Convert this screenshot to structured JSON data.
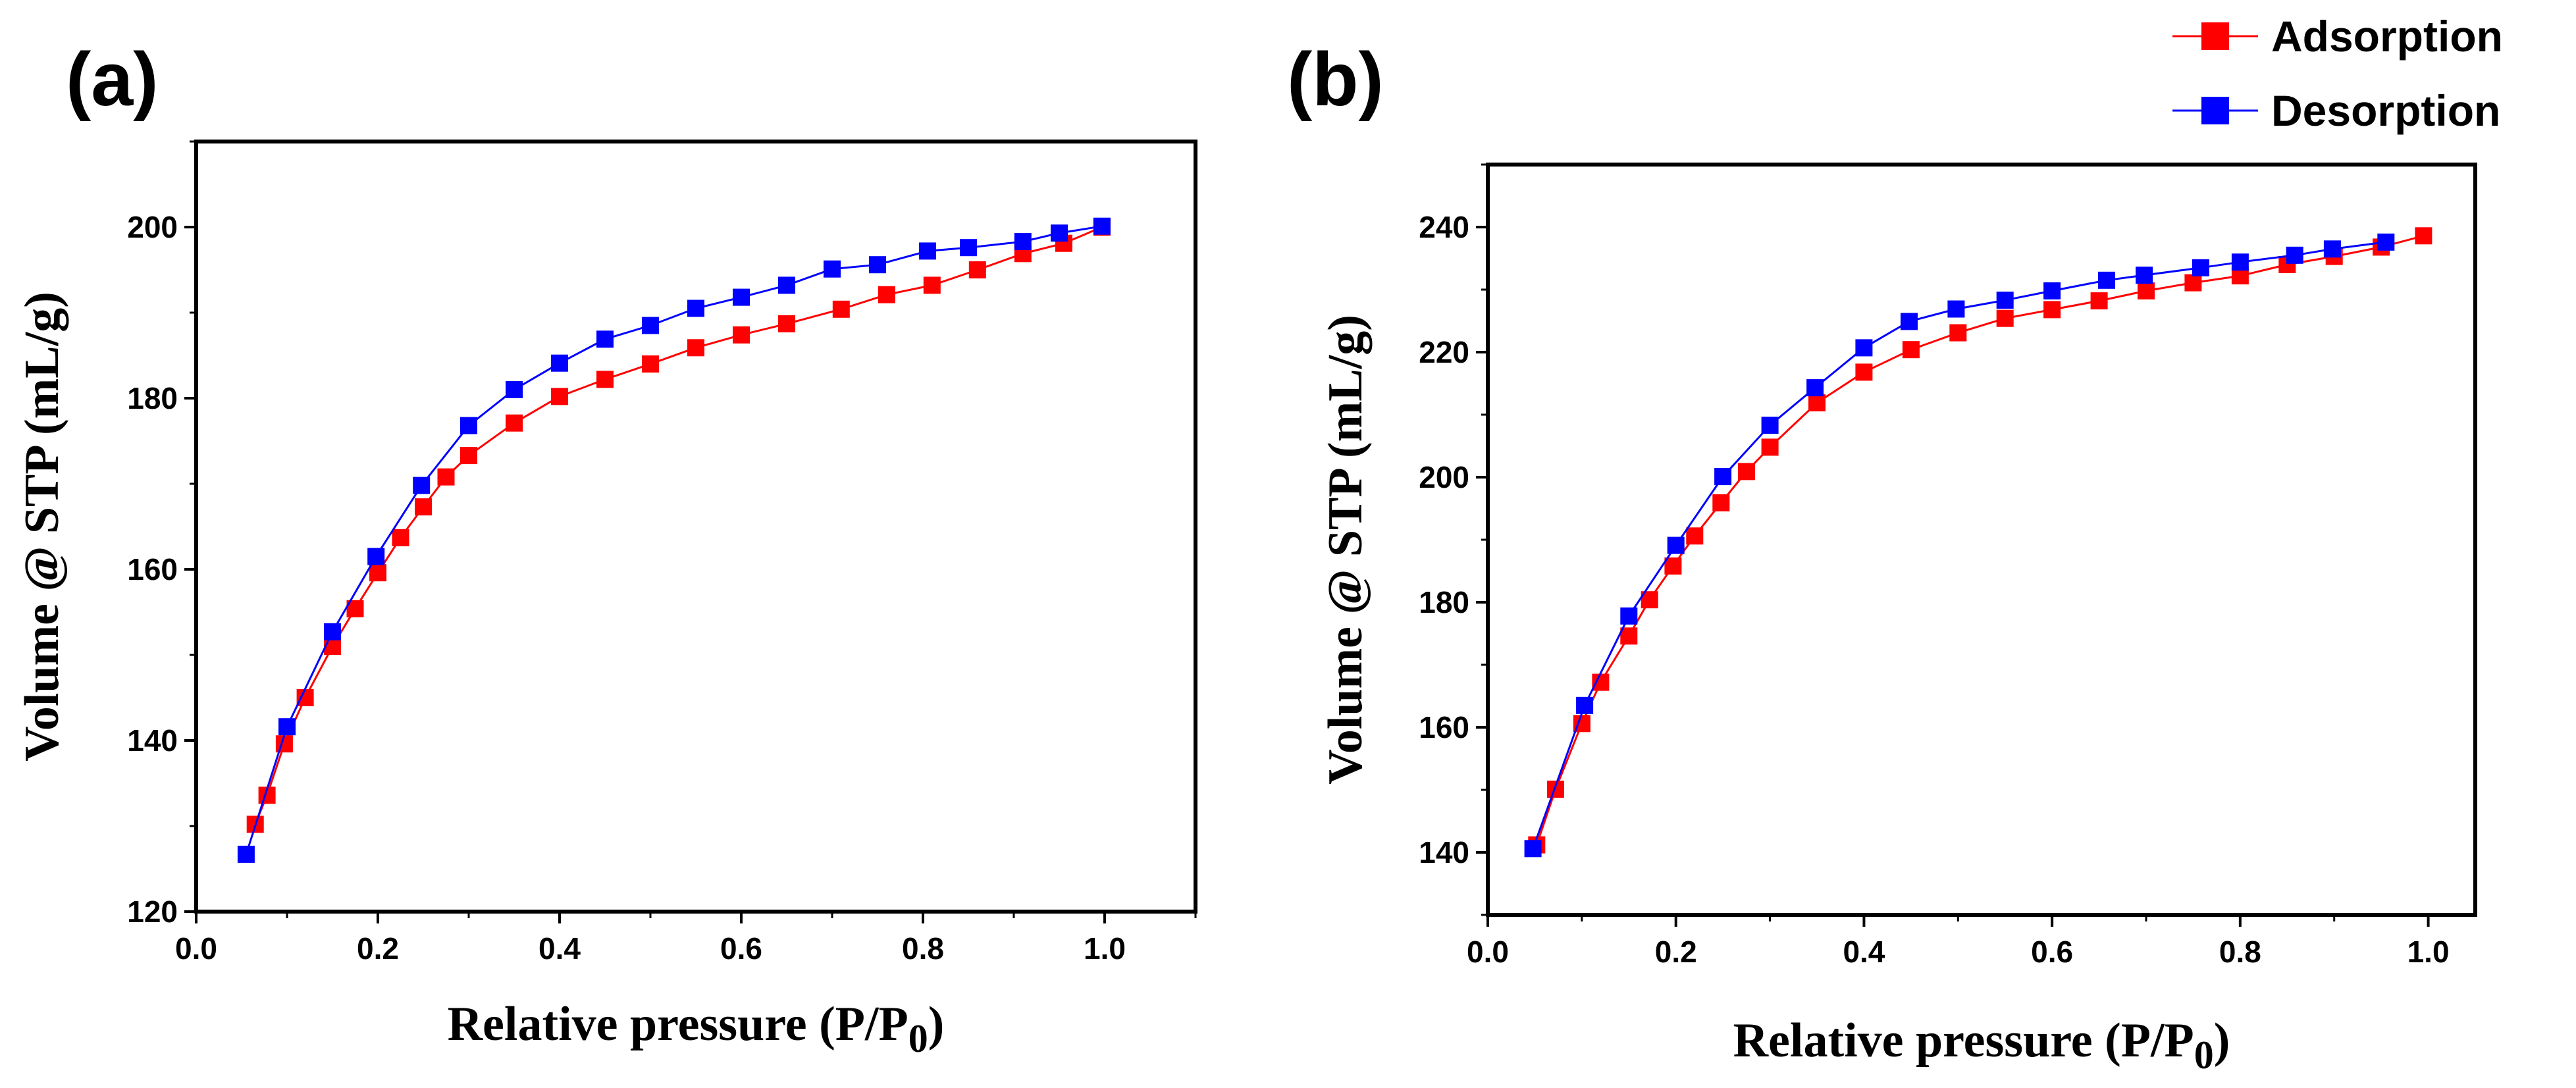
{
  "figure": {
    "legend": [
      {
        "label": "Adsorption",
        "color": "#ff0000"
      },
      {
        "label": "Desorption",
        "color": "#0000ff"
      }
    ]
  },
  "chart_data": [
    {
      "type": "line",
      "panel_label": "(a)",
      "xlabel": "Relative pressure (P/P",
      "xlabel_sub": "0",
      "xlabel_end": ")",
      "ylabel": "Volume @ STP (mL/g)",
      "xlim": [
        0.0,
        1.1
      ],
      "ylim": [
        120,
        210
      ],
      "xticks": [
        0.0,
        0.2,
        0.4,
        0.6,
        0.8,
        1.0
      ],
      "xtick_labels": [
        "0.0",
        "0.2",
        "0.4",
        "0.6",
        "0.8",
        "1.0"
      ],
      "yticks": [
        120,
        140,
        160,
        180,
        200
      ],
      "ytick_labels": [
        "120",
        "140",
        "160",
        "180",
        "200"
      ],
      "series": [
        {
          "name": "Adsorption",
          "color": "#ff0000",
          "x": [
            0.065,
            0.078,
            0.097,
            0.12,
            0.15,
            0.175,
            0.2,
            0.225,
            0.25,
            0.275,
            0.3,
            0.35,
            0.4,
            0.45,
            0.5,
            0.55,
            0.6,
            0.65,
            0.71,
            0.76,
            0.81,
            0.86,
            0.91,
            0.955,
            0.997
          ],
          "y": [
            130.2,
            133.6,
            139.6,
            145.0,
            151.0,
            155.4,
            159.6,
            163.7,
            167.3,
            170.8,
            173.3,
            177.1,
            180.2,
            182.2,
            184.0,
            185.9,
            187.4,
            188.7,
            190.4,
            192.1,
            193.2,
            195.0,
            196.9,
            198.1,
            200.0
          ]
        },
        {
          "name": "Desorption",
          "color": "#0000ff",
          "x": [
            0.055,
            0.1,
            0.15,
            0.198,
            0.248,
            0.3,
            0.35,
            0.4,
            0.45,
            0.5,
            0.55,
            0.6,
            0.65,
            0.7,
            0.75,
            0.805,
            0.85,
            0.91,
            0.95,
            0.997
          ],
          "y": [
            126.7,
            141.6,
            152.7,
            161.5,
            169.8,
            176.8,
            181.0,
            184.1,
            186.9,
            188.5,
            190.5,
            191.8,
            193.2,
            195.1,
            195.6,
            197.2,
            197.6,
            198.3,
            199.3,
            200.1
          ]
        }
      ]
    },
    {
      "type": "line",
      "panel_label": "(b)",
      "xlabel": "Relative pressure (P/P",
      "xlabel_sub": "0",
      "xlabel_end": ")",
      "ylabel": "Volume @ STP (mL/g)",
      "xlim": [
        0.0,
        1.05
      ],
      "ylim": [
        130,
        250
      ],
      "xticks": [
        0.0,
        0.2,
        0.4,
        0.6,
        0.8,
        1.0
      ],
      "xtick_labels": [
        "0.0",
        "0.2",
        "0.4",
        "0.6",
        "0.8",
        "1.0"
      ],
      "yticks": [
        140,
        160,
        180,
        200,
        220,
        240
      ],
      "ytick_labels": [
        "140",
        "160",
        "180",
        "200",
        "220",
        "240"
      ],
      "series": [
        {
          "name": "Adsorption",
          "color": "#ff0000",
          "x": [
            0.052,
            0.072,
            0.1,
            0.12,
            0.15,
            0.172,
            0.197,
            0.22,
            0.248,
            0.275,
            0.3,
            0.35,
            0.4,
            0.45,
            0.5,
            0.55,
            0.6,
            0.65,
            0.7,
            0.75,
            0.8,
            0.85,
            0.9,
            0.95,
            0.995
          ],
          "y": [
            141.2,
            150.1,
            160.6,
            167.2,
            174.6,
            180.4,
            185.8,
            190.6,
            195.9,
            200.9,
            204.8,
            211.9,
            216.8,
            220.4,
            223.1,
            225.4,
            226.8,
            228.2,
            229.8,
            231.1,
            232.2,
            234.0,
            235.3,
            236.8,
            238.6
          ]
        },
        {
          "name": "Desorption",
          "color": "#0000ff",
          "x": [
            0.048,
            0.103,
            0.15,
            0.2,
            0.25,
            0.3,
            0.348,
            0.4,
            0.448,
            0.498,
            0.55,
            0.6,
            0.658,
            0.698,
            0.758,
            0.8,
            0.858,
            0.898,
            0.955
          ],
          "y": [
            140.6,
            163.5,
            177.8,
            189.1,
            200.1,
            208.3,
            214.3,
            220.7,
            224.9,
            226.9,
            228.3,
            229.8,
            231.5,
            232.3,
            233.5,
            234.4,
            235.5,
            236.5,
            237.6
          ]
        }
      ]
    }
  ]
}
